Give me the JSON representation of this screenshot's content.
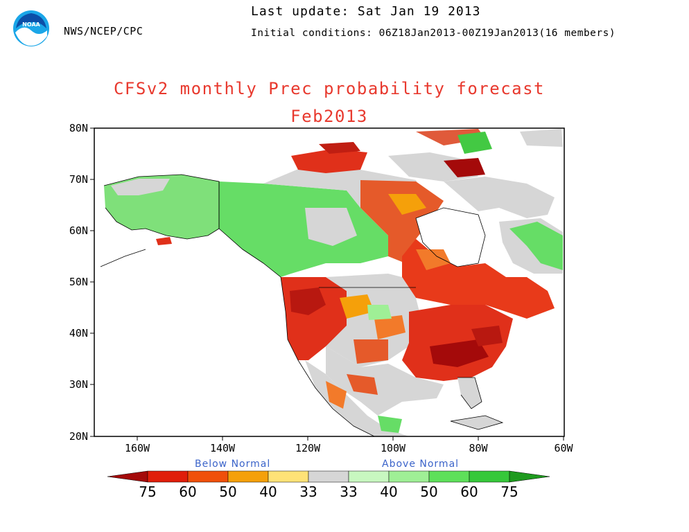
{
  "header": {
    "agency": "NWS/NCEP/CPC",
    "last_update": "Last update: Sat Jan 19 2013",
    "initial_conditions": "Initial conditions: 06Z18Jan2013-00Z19Jan2013(16 members)",
    "logo_text": "NOAA"
  },
  "title": {
    "line1": "CFSv2 monthly Prec probability forecast",
    "line2": "Feb2013"
  },
  "map": {
    "lat_labels": [
      "80N",
      "70N",
      "60N",
      "50N",
      "40N",
      "30N",
      "20N"
    ],
    "lon_labels": [
      "160W",
      "140W",
      "120W",
      "100W",
      "80W",
      "60W"
    ],
    "lat_range": [
      20,
      80
    ],
    "lon_range": [
      -170,
      -60
    ]
  },
  "colorbar": {
    "below_label": "Below Normal",
    "above_label": "Above Normal",
    "ticks": [
      "75",
      "60",
      "50",
      "40",
      "33",
      "33",
      "40",
      "50",
      "60",
      "75"
    ],
    "colors": {
      "below_75": "#a40a0a",
      "below_60": "#e01e0a",
      "below_50": "#f0500a",
      "below_40": "#f5a00a",
      "below_33": "#fee277",
      "normal": "#d6d6d6",
      "above_33": "#c8f7c0",
      "above_40": "#9fef96",
      "above_50": "#5ee05a",
      "above_60": "#36c83a",
      "above_75": "#1e9a1e"
    }
  }
}
